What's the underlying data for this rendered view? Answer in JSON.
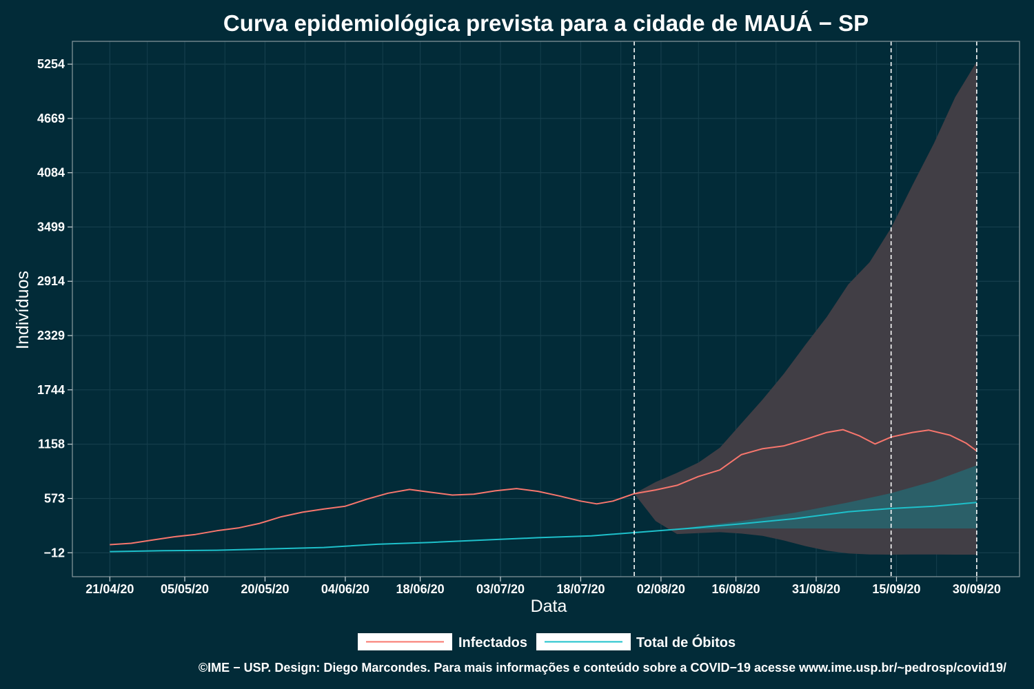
{
  "chart_data": {
    "type": "line",
    "title": "Curva epidemiológica prevista para a cidade de MAUÁ − SP",
    "xlabel": "Data",
    "ylabel": "Indivíduos",
    "x_ticks": [
      "21/04/20",
      "05/05/20",
      "20/05/20",
      "04/06/20",
      "18/06/20",
      "03/07/20",
      "18/07/20",
      "02/08/20",
      "16/08/20",
      "31/08/20",
      "15/09/20",
      "30/09/20"
    ],
    "y_ticks": [
      -12,
      573,
      1158,
      1744,
      2329,
      2914,
      3499,
      4084,
      4669,
      5254
    ],
    "ylim": [
      -270,
      5500
    ],
    "xlim": [
      "2020-04-14",
      "2020-10-08"
    ],
    "grid": true,
    "vlines": [
      "2020-07-28",
      "2020-09-14",
      "2020-09-30"
    ],
    "series": [
      {
        "name": "Infectados",
        "color": "#f8766d",
        "points": [
          [
            "2020-04-21",
            75
          ],
          [
            "2020-04-25",
            90
          ],
          [
            "2020-04-29",
            125
          ],
          [
            "2020-05-03",
            160
          ],
          [
            "2020-05-07",
            185
          ],
          [
            "2020-05-11",
            225
          ],
          [
            "2020-05-15",
            255
          ],
          [
            "2020-05-19",
            305
          ],
          [
            "2020-05-23",
            375
          ],
          [
            "2020-05-27",
            425
          ],
          [
            "2020-05-31",
            460
          ],
          [
            "2020-06-04",
            490
          ],
          [
            "2020-06-08",
            565
          ],
          [
            "2020-06-12",
            630
          ],
          [
            "2020-06-16",
            670
          ],
          [
            "2020-06-20",
            640
          ],
          [
            "2020-06-24",
            610
          ],
          [
            "2020-06-28",
            620
          ],
          [
            "2020-07-02",
            655
          ],
          [
            "2020-07-06",
            680
          ],
          [
            "2020-07-10",
            650
          ],
          [
            "2020-07-14",
            600
          ],
          [
            "2020-07-18",
            545
          ],
          [
            "2020-07-21",
            515
          ],
          [
            "2020-07-24",
            545
          ],
          [
            "2020-07-28",
            625
          ],
          [
            "2020-08-01",
            665
          ],
          [
            "2020-08-05",
            715
          ],
          [
            "2020-08-09",
            810
          ],
          [
            "2020-08-13",
            880
          ],
          [
            "2020-08-17",
            1045
          ],
          [
            "2020-08-21",
            1110
          ],
          [
            "2020-08-25",
            1140
          ],
          [
            "2020-08-29",
            1210
          ],
          [
            "2020-09-02",
            1285
          ],
          [
            "2020-09-05",
            1315
          ],
          [
            "2020-09-08",
            1250
          ],
          [
            "2020-09-11",
            1160
          ],
          [
            "2020-09-14",
            1235
          ],
          [
            "2020-09-18",
            1285
          ],
          [
            "2020-09-21",
            1310
          ],
          [
            "2020-09-25",
            1255
          ],
          [
            "2020-09-28",
            1170
          ],
          [
            "2020-09-30",
            1085
          ]
        ],
        "band": [
          [
            "2020-07-28",
            625,
            625
          ],
          [
            "2020-08-01",
            750,
            330
          ],
          [
            "2020-08-05",
            850,
            190
          ],
          [
            "2020-08-09",
            960,
            200
          ],
          [
            "2020-08-13",
            1120,
            210
          ],
          [
            "2020-08-17",
            1380,
            195
          ],
          [
            "2020-08-21",
            1640,
            170
          ],
          [
            "2020-08-25",
            1920,
            120
          ],
          [
            "2020-08-29",
            2230,
            60
          ],
          [
            "2020-09-02",
            2530,
            10
          ],
          [
            "2020-09-06",
            2880,
            -20
          ],
          [
            "2020-09-10",
            3120,
            -30
          ],
          [
            "2020-09-14",
            3490,
            -32
          ],
          [
            "2020-09-18",
            3950,
            -30
          ],
          [
            "2020-09-22",
            4400,
            -30
          ],
          [
            "2020-09-26",
            4900,
            -32
          ],
          [
            "2020-09-30",
            5280,
            -32
          ]
        ]
      },
      {
        "name": "Total de Óbitos",
        "color": "#1ec1cb",
        "points": [
          [
            "2020-04-21",
            0
          ],
          [
            "2020-05-01",
            10
          ],
          [
            "2020-05-11",
            15
          ],
          [
            "2020-05-21",
            30
          ],
          [
            "2020-05-31",
            45
          ],
          [
            "2020-06-10",
            80
          ],
          [
            "2020-06-20",
            100
          ],
          [
            "2020-06-30",
            125
          ],
          [
            "2020-07-10",
            150
          ],
          [
            "2020-07-20",
            170
          ],
          [
            "2020-07-28",
            205
          ],
          [
            "2020-08-07",
            250
          ],
          [
            "2020-08-17",
            300
          ],
          [
            "2020-08-27",
            355
          ],
          [
            "2020-09-06",
            430
          ],
          [
            "2020-09-14",
            465
          ],
          [
            "2020-09-22",
            490
          ],
          [
            "2020-09-30",
            530
          ]
        ],
        "band": [
          [
            "2020-07-28",
            205,
            205
          ],
          [
            "2020-08-07",
            260,
            240
          ],
          [
            "2020-08-17",
            330,
            250
          ],
          [
            "2020-08-27",
            420,
            250
          ],
          [
            "2020-09-06",
            530,
            250
          ],
          [
            "2020-09-14",
            630,
            250
          ],
          [
            "2020-09-22",
            760,
            250
          ],
          [
            "2020-09-30",
            930,
            250
          ]
        ]
      }
    ],
    "legend": {
      "position": "bottom",
      "items": [
        "Infectados",
        "Total de Óbitos"
      ]
    }
  },
  "colors": {
    "background": "#022b38",
    "grid": "#163f4d",
    "band_infected": "#413e45",
    "band_deaths": "#2b5f68"
  },
  "footer": "©IME − USP. Design: Diego Marcondes. Para mais informações e conteúdo sobre a COVID−19 acesse www.ime.usp.br/~pedrosp/covid19/"
}
